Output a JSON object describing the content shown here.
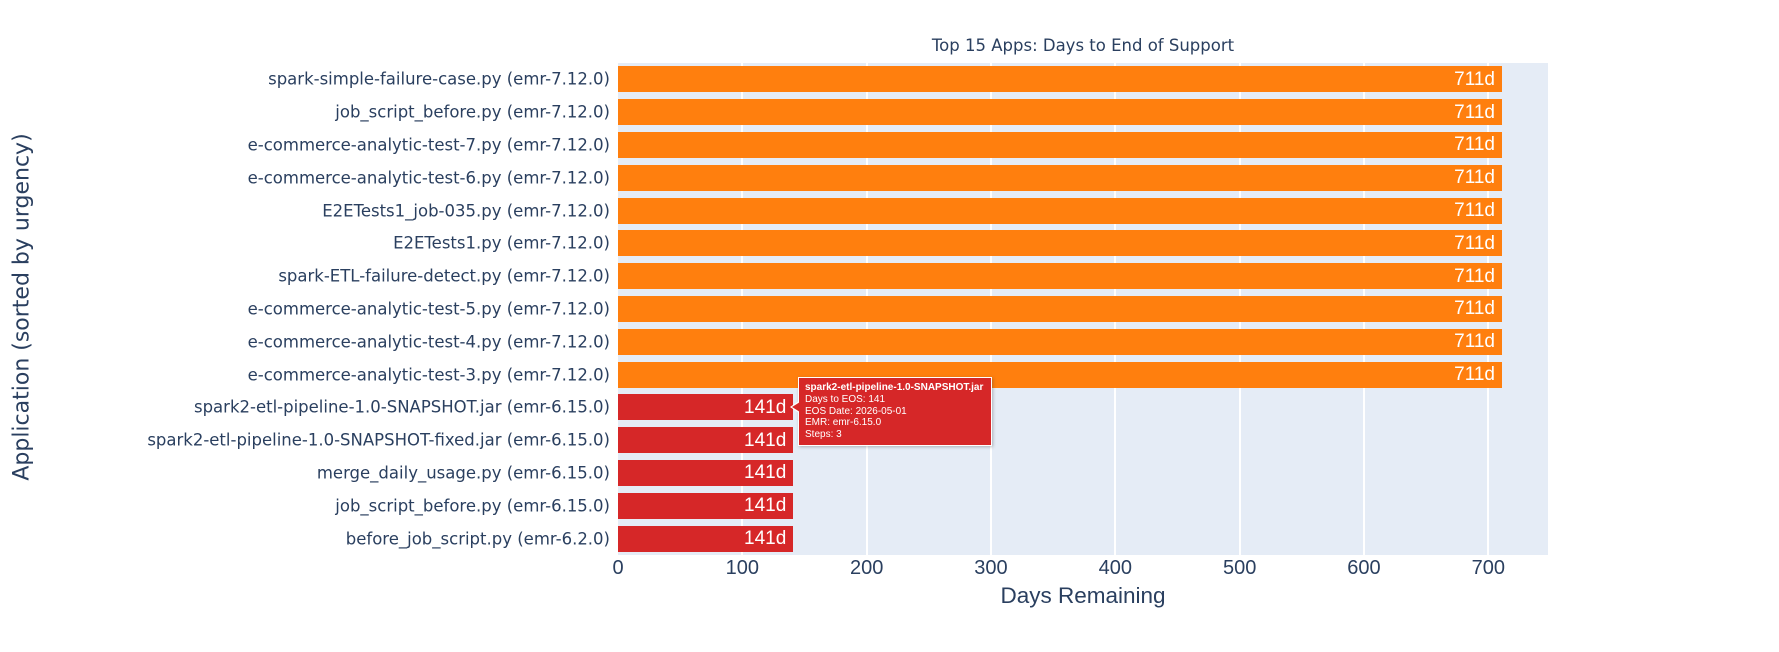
{
  "chart_data": {
    "type": "bar",
    "orientation": "horizontal",
    "title": "Top 15 Apps: Days to End of Support",
    "xlabel": "Days Remaining",
    "ylabel": "Application (sorted by urgency)",
    "xlim": [
      0,
      748
    ],
    "xticks": [
      0,
      100,
      200,
      300,
      400,
      500,
      600,
      700
    ],
    "grid": true,
    "legend": false,
    "categories": [
      "spark-simple-failure-case.py (emr-7.12.0)",
      "job_script_before.py (emr-7.12.0)",
      "e-commerce-analytic-test-7.py (emr-7.12.0)",
      "e-commerce-analytic-test-6.py (emr-7.12.0)",
      "E2ETests1_job-035.py (emr-7.12.0)",
      "E2ETests1.py (emr-7.12.0)",
      "spark-ETL-failure-detect.py (emr-7.12.0)",
      "e-commerce-analytic-test-5.py (emr-7.12.0)",
      "e-commerce-analytic-test-4.py (emr-7.12.0)",
      "e-commerce-analytic-test-3.py (emr-7.12.0)",
      "spark2-etl-pipeline-1.0-SNAPSHOT.jar (emr-6.15.0)",
      "spark2-etl-pipeline-1.0-SNAPSHOT-fixed.jar (emr-6.15.0)",
      "merge_daily_usage.py (emr-6.15.0)",
      "job_script_before.py (emr-6.15.0)",
      "before_job_script.py (emr-6.2.0)"
    ],
    "values": [
      711,
      711,
      711,
      711,
      711,
      711,
      711,
      711,
      711,
      711,
      141,
      141,
      141,
      141,
      141
    ],
    "bar_labels": [
      "711d",
      "711d",
      "711d",
      "711d",
      "711d",
      "711d",
      "711d",
      "711d",
      "711d",
      "711d",
      "141d",
      "141d",
      "141d",
      "141d",
      "141d"
    ],
    "bar_colors": [
      "#ff7f0e",
      "#ff7f0e",
      "#ff7f0e",
      "#ff7f0e",
      "#ff7f0e",
      "#ff7f0e",
      "#ff7f0e",
      "#ff7f0e",
      "#ff7f0e",
      "#ff7f0e",
      "#d62728",
      "#d62728",
      "#d62728",
      "#d62728",
      "#d62728"
    ]
  },
  "tooltip": {
    "title": "spark2-etl-pipeline-1.0-SNAPSHOT.jar",
    "lines": [
      "Days to EOS: 141",
      "EOS Date: 2026-05-01",
      "EMR: emr-6.15.0",
      "Steps: 3"
    ],
    "anchor_bar_index": 10,
    "bg_color": "#d62728"
  },
  "palette": {
    "plot_bg": "#e5ecf6",
    "grid": "#ffffff",
    "text": "#2a3f5f",
    "warning_bar": "#ff7f0e",
    "critical_bar": "#d62728",
    "bar_label_text": "#ffffff"
  }
}
